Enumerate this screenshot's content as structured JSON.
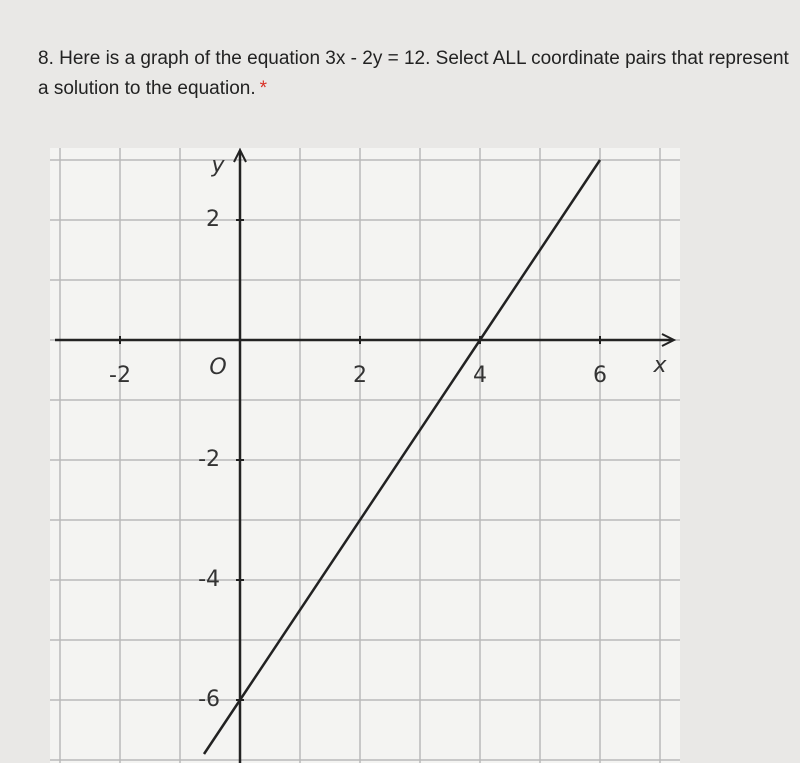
{
  "question": {
    "text": "8. Here is a graph of the equation 3x - 2y = 12. Select ALL coordinate pairs that represent a solution to the equation.",
    "required_mark": "*"
  },
  "chart_data": {
    "type": "line",
    "x_label": "x",
    "y_label": "y",
    "origin_label": "O",
    "xlim": [
      -3,
      7
    ],
    "ylim": [
      -7,
      3
    ],
    "xticks": [
      -2,
      2,
      4,
      6
    ],
    "yticks": [
      2,
      -2,
      -4,
      -6
    ],
    "grid": true,
    "series": [
      {
        "x": [
          -0.6,
          0,
          4,
          6
        ],
        "values": [
          -6.9,
          -6,
          0,
          3
        ],
        "color": "#222222"
      }
    ]
  }
}
